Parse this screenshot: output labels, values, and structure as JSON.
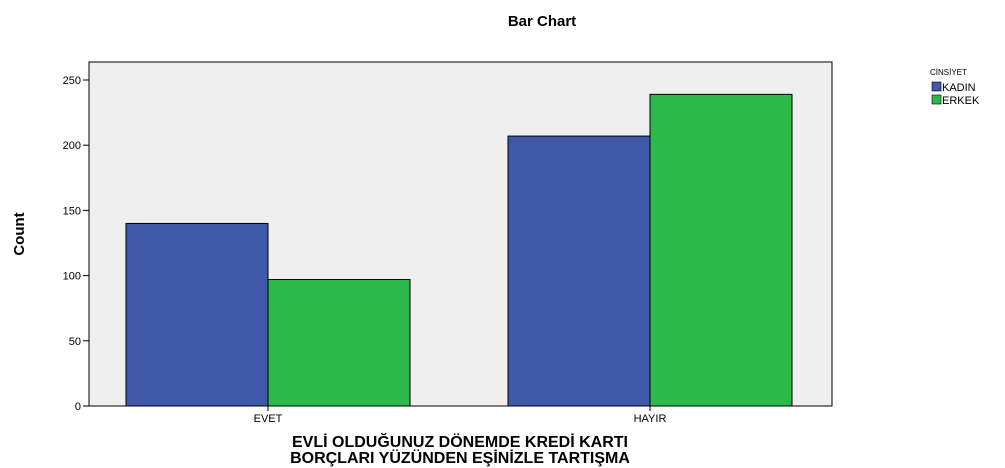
{
  "chart_data": {
    "type": "bar",
    "title": "Bar Chart",
    "xlabel_lines": [
      "EVLİ OLDUĞUNUZ DÖNEMDE KREDİ KARTI",
      "BORÇLARI YÜZÜNDEN EŞİNİZLE TARTIŞMA"
    ],
    "ylabel": "Count",
    "categories": [
      "EVET",
      "HAYIR"
    ],
    "series": [
      {
        "name": "KADIN",
        "color": "#3f58a8",
        "values": [
          140,
          207
        ]
      },
      {
        "name": "ERKEK",
        "color": "#2db84a",
        "values": [
          97,
          239
        ]
      }
    ],
    "ylim": [
      0,
      250
    ],
    "yticks": [
      0,
      50,
      100,
      150,
      200,
      250
    ],
    "legend_title": "CİNSİYET",
    "legend_position": "right",
    "plot_background": "#efefef"
  }
}
